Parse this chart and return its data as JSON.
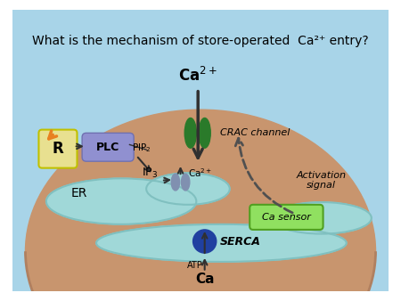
{
  "title": "What is the mechanism of store-operated  Ca²⁺ entry?",
  "bg_color": "#a8d4e8",
  "cell_color": "#c8956e",
  "er_color": "#a0d8d8",
  "er_outline": "#80c0c0",
  "crac_color": "#2a7a2a",
  "plc_color": "#9090d0",
  "r_color": "#e8e090",
  "r_arrow_color": "#e88020",
  "ca_sensor_color": "#90e060",
  "serca_color": "#2040a0",
  "arrow_color": "#303030",
  "dashed_color": "#505050",
  "labels": {
    "ca2plus_top": "Ca²⁺",
    "crac": "CRAC channel",
    "ip3": "IP₃",
    "ca2plus_mid": "Ca²⁺",
    "pip2": "PIP₂",
    "er": "ER",
    "ca_sensor": "Ca sensor",
    "serca": "SERCA",
    "atp": "ATP",
    "ca_bottom": "Ca",
    "activation": "Activation\nsignal",
    "r": "R",
    "plc": "PLC"
  }
}
